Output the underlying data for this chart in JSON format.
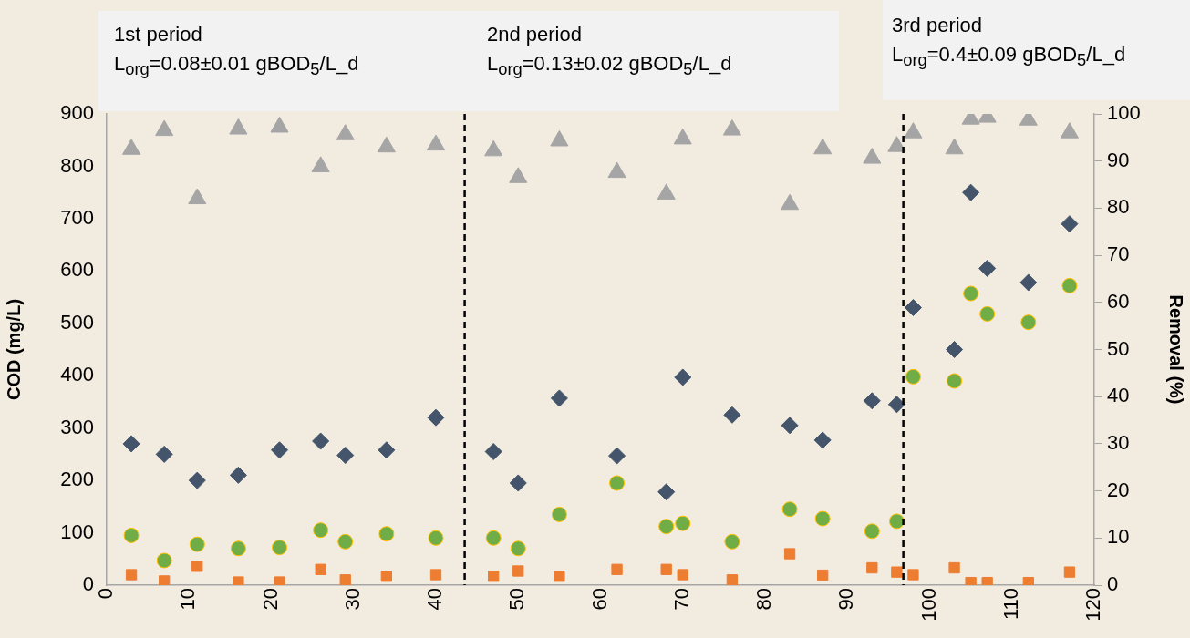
{
  "chart_data": {
    "type": "scatter",
    "x": [
      3,
      7,
      11,
      16,
      21,
      26,
      29,
      34,
      40,
      47,
      50,
      55,
      62,
      68,
      70,
      76,
      83,
      87,
      93,
      96,
      98,
      103,
      105,
      107,
      112,
      117
    ],
    "series": [
      {
        "color": "#44546a",
        "marker": "diamond",
        "values": [
          270,
          250,
          200,
          210,
          258,
          275,
          248,
          258,
          320,
          255,
          195,
          357,
          247,
          178,
          397,
          325,
          305,
          277,
          352,
          345,
          530,
          450,
          750,
          605,
          578,
          690
        ]
      },
      {
        "color": "#70ad47",
        "marker": "circle",
        "values": [
          95,
          47,
          78,
          70,
          72,
          105,
          83,
          98,
          90,
          90,
          70,
          135,
          195,
          112,
          118,
          83,
          145,
          127,
          103,
          122,
          398,
          390,
          557,
          518,
          502,
          572
        ]
      },
      {
        "color": "#ed7d31",
        "marker": "square",
        "values": [
          20,
          8,
          36,
          6,
          6,
          30,
          10,
          17,
          20,
          17,
          27,
          17,
          30,
          30,
          20,
          10,
          60,
          19,
          33,
          25,
          20,
          33,
          5,
          5,
          5,
          25
        ]
      },
      {
        "color": "#a5a5a5",
        "marker": "triangle",
        "axis": "y2",
        "values": [
          92.5,
          96.5,
          82,
          96.8,
          97.2,
          88.8,
          95.6,
          93,
          93.4,
          92.2,
          86.5,
          94.3,
          87.6,
          83,
          94.7,
          96.6,
          80.8,
          92.6,
          90.6,
          93.1,
          96,
          92.6,
          98.9,
          99.3,
          98.7,
          96
        ]
      }
    ],
    "ylabel": "COD (mg/L)",
    "y2label": "Removal (%)",
    "xlim": [
      0,
      120
    ],
    "xticks": [
      0,
      10,
      20,
      30,
      40,
      50,
      60,
      70,
      80,
      90,
      100,
      110,
      120
    ],
    "ylim": [
      0,
      900
    ],
    "yticks": [
      0,
      100,
      200,
      300,
      400,
      500,
      600,
      700,
      800,
      900
    ],
    "y2lim": [
      0,
      100
    ],
    "y2ticks": [
      0,
      10,
      20,
      30,
      40,
      50,
      60,
      70,
      80,
      90,
      100
    ],
    "grid": false,
    "legend": false,
    "ref_lines": [
      {
        "axis": "x",
        "value": 43.5,
        "color": "#000000",
        "line_style": "dashed"
      },
      {
        "axis": "x",
        "value": 96.8,
        "color": "#000000",
        "line_style": "dashed"
      }
    ],
    "annotations": [
      "1st period",
      "L$_{org}$=0.08±0.01 gBOD$_{5}$/L_d",
      "2nd period",
      "L$_{org}$=0.13±0.02 gBOD$_{5}$/L_d",
      "3rd period",
      "L$_{org}$=0.4±0.09 gBOD$_{5}$/L_d"
    ]
  }
}
